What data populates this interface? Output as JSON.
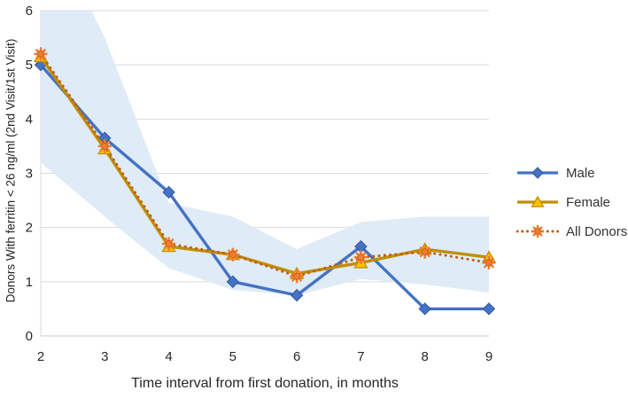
{
  "figure_background": "#ffffff",
  "chart_data": {
    "type": "line",
    "title": "",
    "xlabel": "Time interval from first donation, in months",
    "ylabel": "Donors With ferritin < 26 ng/ml (2nd Visit/1st Visit)",
    "x": [
      2,
      3,
      4,
      5,
      6,
      7,
      8,
      9
    ],
    "xticks": [
      2,
      3,
      4,
      5,
      6,
      7,
      8,
      9
    ],
    "yticks": [
      0,
      1,
      2,
      3,
      4,
      5,
      6
    ],
    "xlim": [
      2,
      9
    ],
    "ylim": [
      0,
      6
    ],
    "grid": true,
    "legend_position": "right",
    "series": [
      {
        "name": "Male",
        "values": [
          5.0,
          3.65,
          2.65,
          1.0,
          0.75,
          1.65,
          0.5,
          0.5
        ],
        "color": "#4472C4",
        "marker": "diamond",
        "marker_fill": "#4472C4",
        "marker_stroke": "#35589E",
        "line_style": "solid"
      },
      {
        "name": "Female",
        "values": [
          5.15,
          3.45,
          1.65,
          1.5,
          1.15,
          1.35,
          1.6,
          1.45
        ],
        "color": "#BF8F00",
        "marker": "triangle",
        "marker_fill": "#FFC000",
        "marker_stroke": "#BF8F00",
        "line_style": "solid"
      },
      {
        "name": "All Donors",
        "values": [
          5.2,
          3.5,
          1.7,
          1.5,
          1.1,
          1.45,
          1.55,
          1.35
        ],
        "color": "#C55A11",
        "marker": "burst",
        "marker_fill": "#ED7D31",
        "marker_stroke": "#C55A11",
        "line_style": "dotted"
      }
    ],
    "band": {
      "label": "confidence-band",
      "lower": [
        3.2,
        2.2,
        1.25,
        0.85,
        0.75,
        1.05,
        0.95,
        0.8
      ],
      "upper": [
        7.9,
        5.5,
        2.45,
        2.2,
        1.6,
        2.1,
        2.2,
        2.2
      ],
      "color": "#DCE9F5"
    },
    "colors": {
      "gridline": "#D9D9D9",
      "axis_line": "#C9C9C9",
      "tick_text": "#262626"
    }
  }
}
